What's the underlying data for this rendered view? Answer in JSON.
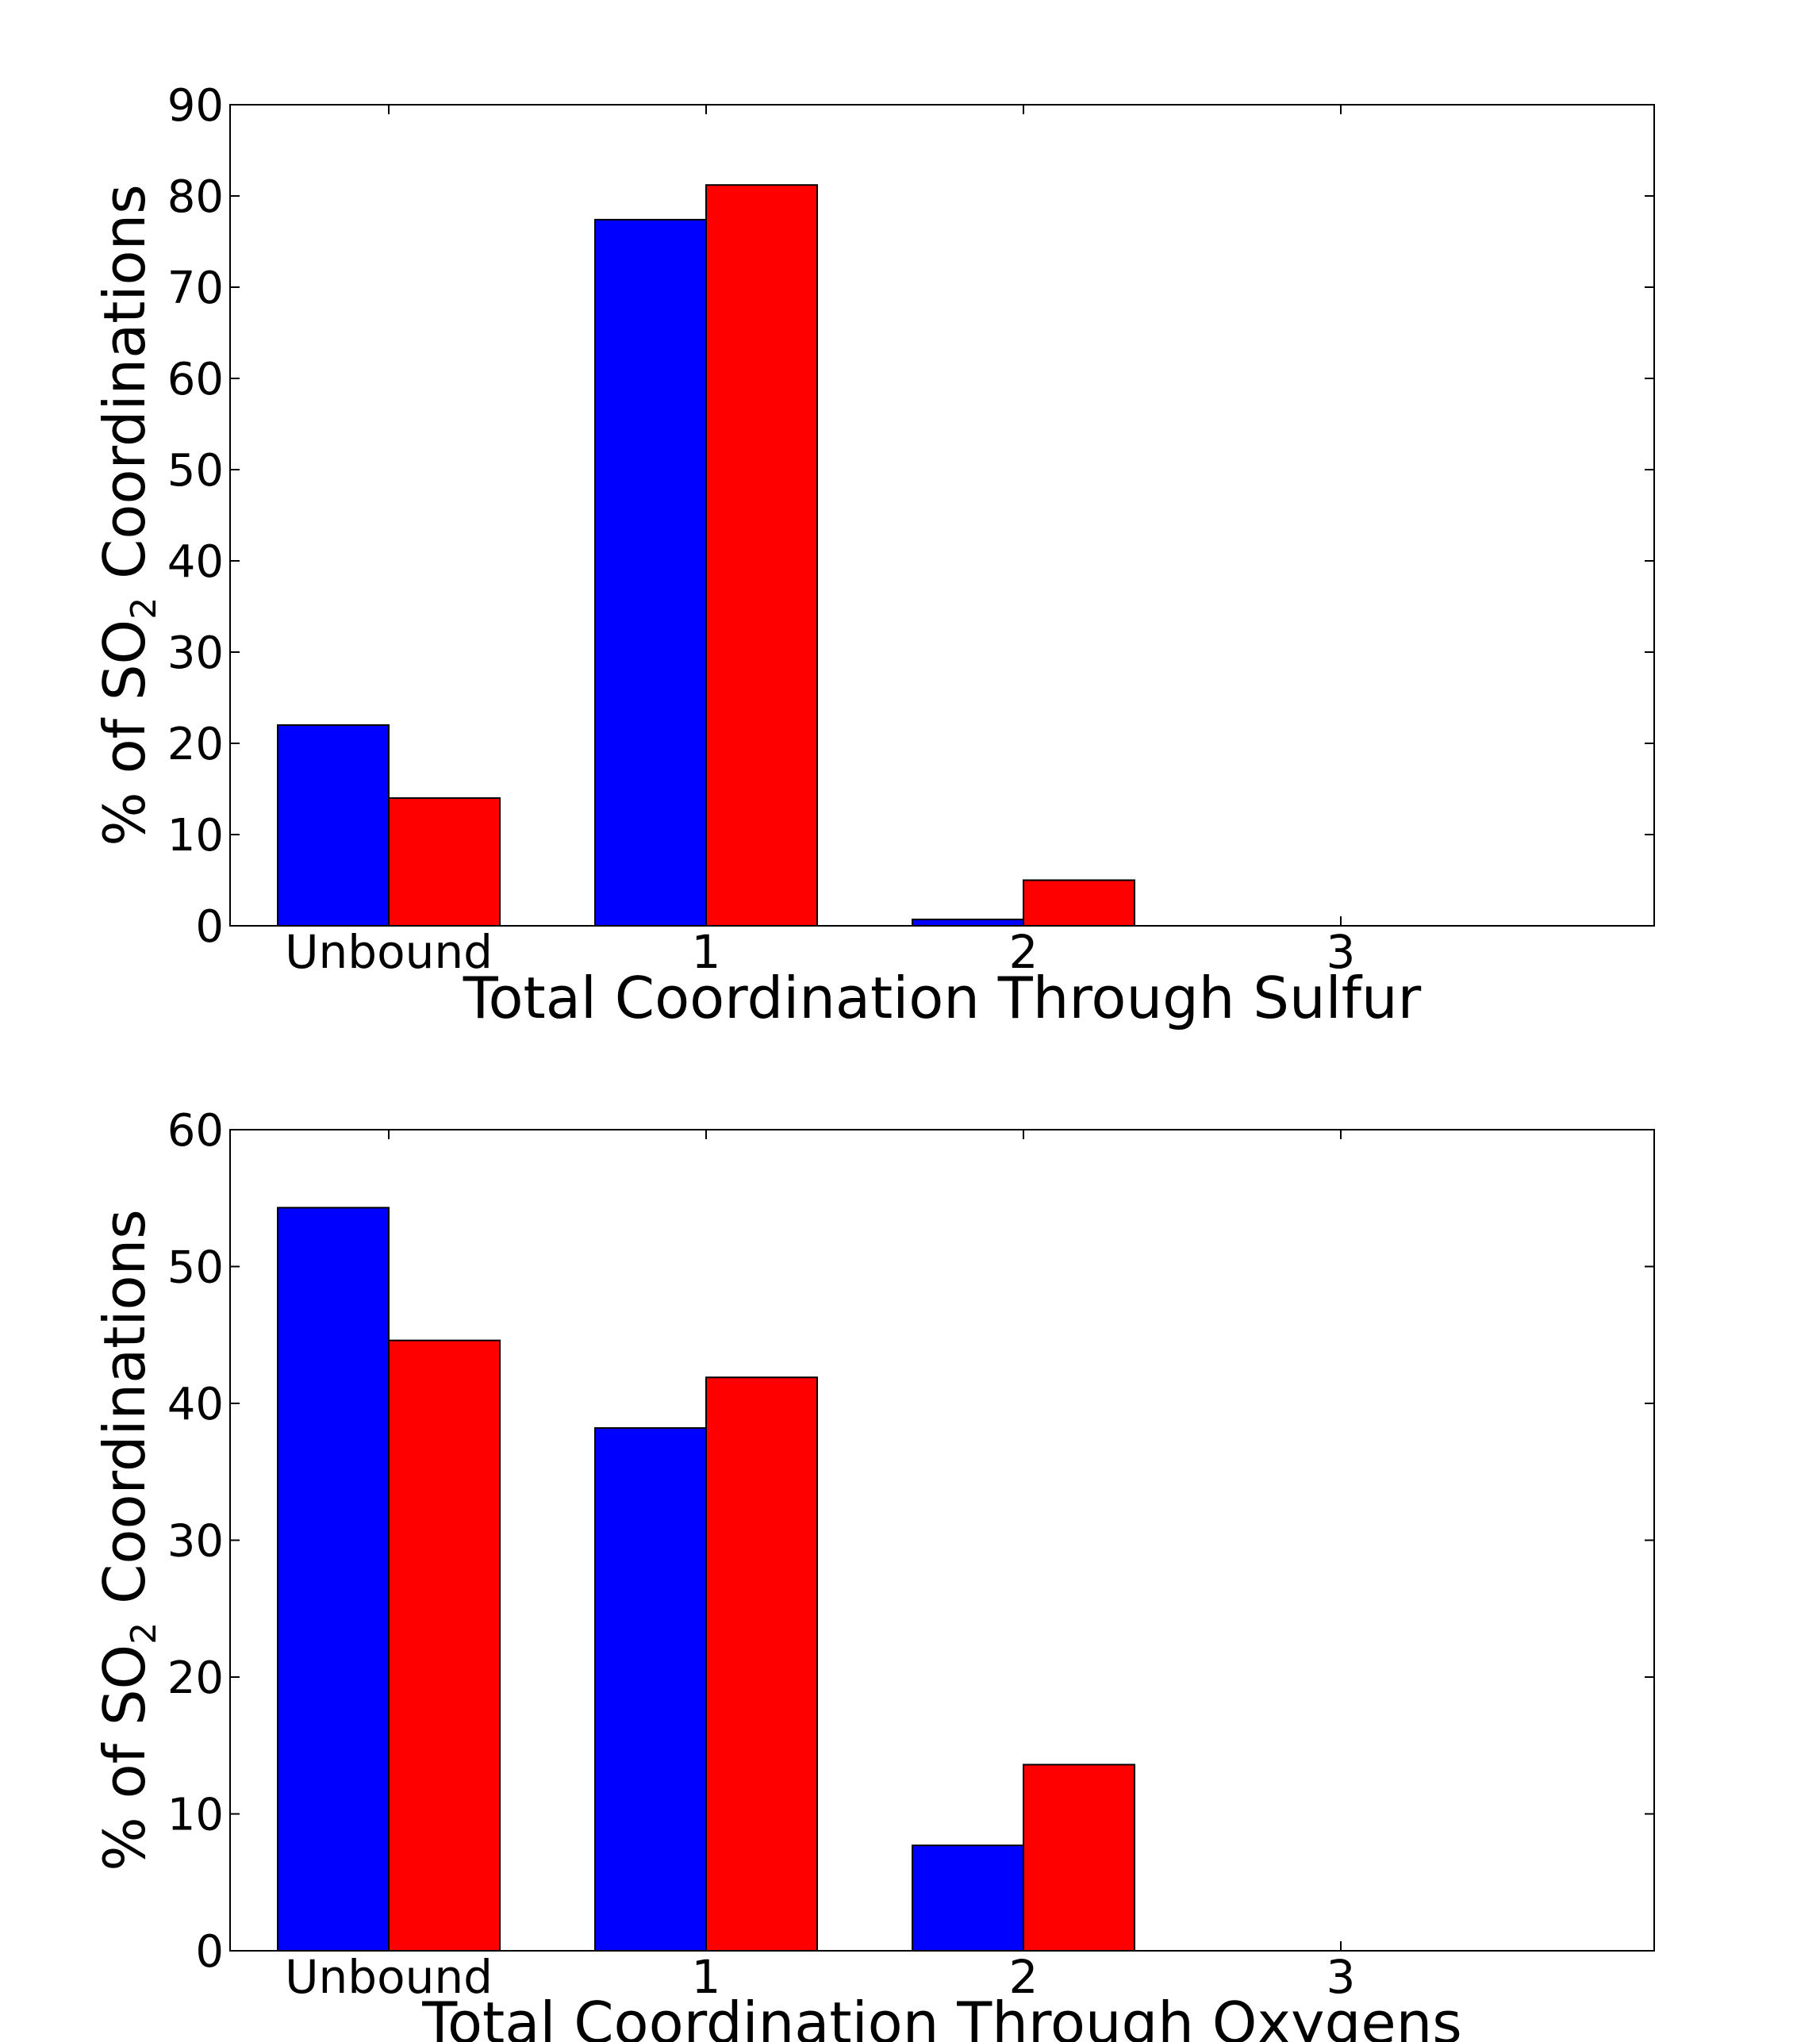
{
  "colors": {
    "series_a": "#0000ff",
    "series_b": "#ff0000",
    "axis": "#000000",
    "background": "#ffffff"
  },
  "chart_data": [
    {
      "type": "bar",
      "categories": [
        "Unbound",
        "1",
        "2",
        "3"
      ],
      "series": [
        {
          "values": [
            22.0,
            77.4,
            0.7,
            0.0
          ]
        },
        {
          "values": [
            14.0,
            81.2,
            5.0,
            0.0
          ]
        }
      ],
      "xlabel": "Total Coordination Through Sulfur",
      "ylabel": {
        "prefix": "% of SO",
        "subscript": "2",
        "suffix": " Coordinations"
      },
      "ylim": [
        0,
        90
      ],
      "yticks": [
        0,
        10,
        20,
        30,
        40,
        50,
        60,
        70,
        80,
        90
      ],
      "grid": false,
      "legend": "none"
    },
    {
      "type": "bar",
      "categories": [
        "Unbound",
        "1",
        "2",
        "3"
      ],
      "series": [
        {
          "values": [
            54.3,
            38.2,
            7.7,
            0.0
          ]
        },
        {
          "values": [
            44.6,
            41.9,
            13.6,
            0.0
          ]
        }
      ],
      "xlabel": "Total Coordination Through Oxygens",
      "ylabel": {
        "prefix": "% of SO",
        "subscript": "2",
        "suffix": " Coordinations"
      },
      "ylim": [
        0,
        60
      ],
      "yticks": [
        0,
        10,
        20,
        30,
        40,
        50,
        60
      ],
      "grid": false,
      "legend": "none"
    }
  ]
}
